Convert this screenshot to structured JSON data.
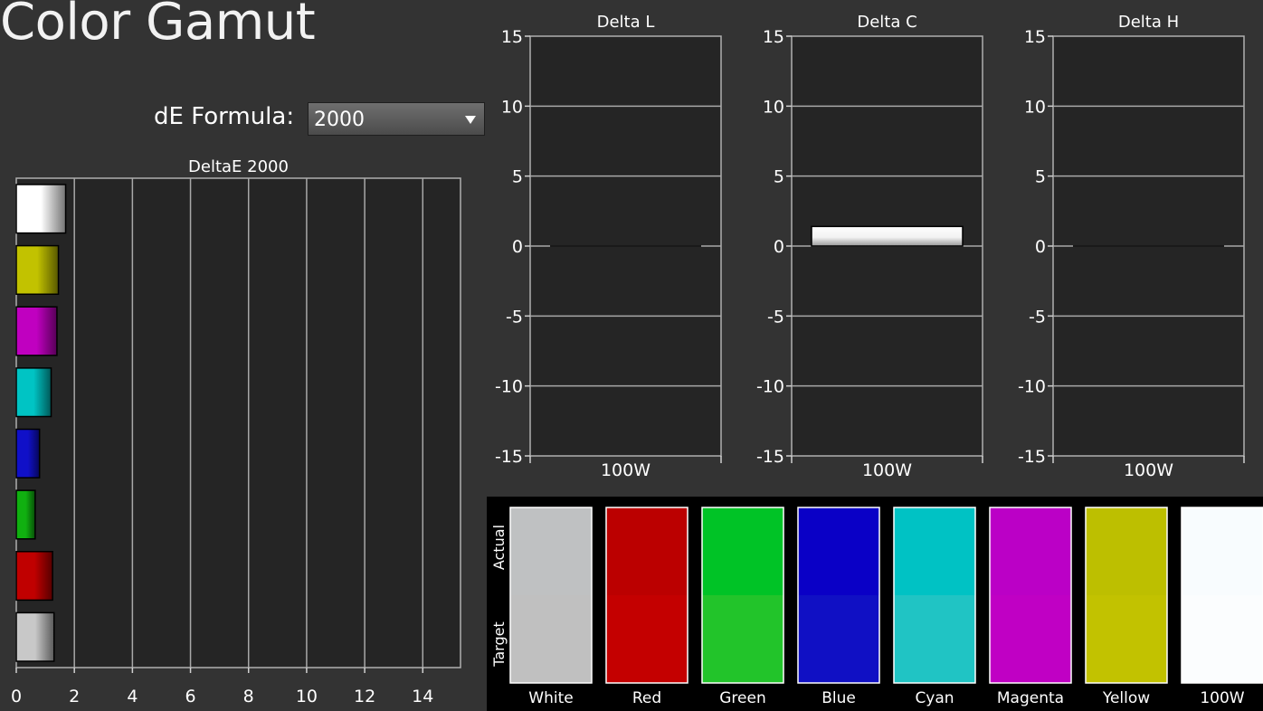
{
  "app": {
    "title": "Color Gamut"
  },
  "formula": {
    "label": "dE Formula:",
    "value": "2000"
  },
  "chart_data": [
    {
      "type": "bar",
      "orientation": "horizontal",
      "title": "DeltaE 2000",
      "categories": [
        "100W",
        "Yellow",
        "Magenta",
        "Cyan",
        "Blue",
        "Green",
        "Red",
        "White"
      ],
      "colors": [
        "#ffffff",
        "#c2c200",
        "#c000c0",
        "#00c4c4",
        "#1010c8",
        "#10b010",
        "#c00000",
        "#c8c8c8"
      ],
      "values": [
        1.7,
        1.45,
        1.4,
        1.2,
        0.8,
        0.65,
        1.25,
        1.3
      ],
      "xlim": [
        0,
        15.3
      ],
      "xticks": [
        0,
        2,
        4,
        6,
        8,
        10,
        12,
        14
      ],
      "grid": true
    },
    {
      "type": "bar",
      "title": "Delta L",
      "categories": [
        "100W"
      ],
      "values": [
        0
      ],
      "ylim": [
        -15,
        15
      ],
      "yticks": [
        15,
        10,
        5,
        0,
        -5,
        -10,
        -15
      ],
      "grid": true
    },
    {
      "type": "bar",
      "title": "Delta C",
      "categories": [
        "100W"
      ],
      "values": [
        1.4
      ],
      "ylim": [
        -15,
        15
      ],
      "yticks": [
        15,
        10,
        5,
        0,
        -5,
        -10,
        -15
      ],
      "grid": true
    },
    {
      "type": "bar",
      "title": "Delta H",
      "categories": [
        "100W"
      ],
      "values": [
        0
      ],
      "ylim": [
        -15,
        15
      ],
      "yticks": [
        15,
        10,
        5,
        0,
        -5,
        -10,
        -15
      ],
      "grid": true
    }
  ],
  "swatches": {
    "actual_label": "Actual",
    "target_label": "Target",
    "items": [
      {
        "name": "White",
        "actual": "#bfc1c2",
        "target": "#c0c0c0"
      },
      {
        "name": "Red",
        "actual": "#bb0000",
        "target": "#c40000"
      },
      {
        "name": "Green",
        "actual": "#00c326",
        "target": "#22c42a"
      },
      {
        "name": "Blue",
        "actual": "#0a00c6",
        "target": "#1010c4"
      },
      {
        "name": "Cyan",
        "actual": "#00c2c4",
        "target": "#20c4c4"
      },
      {
        "name": "Magenta",
        "actual": "#bb00c6",
        "target": "#c000c4"
      },
      {
        "name": "Yellow",
        "actual": "#bdbf00",
        "target": "#c2c200"
      },
      {
        "name": "100W",
        "actual": "#f8fcfe",
        "target": "#fbfdfe"
      }
    ]
  }
}
